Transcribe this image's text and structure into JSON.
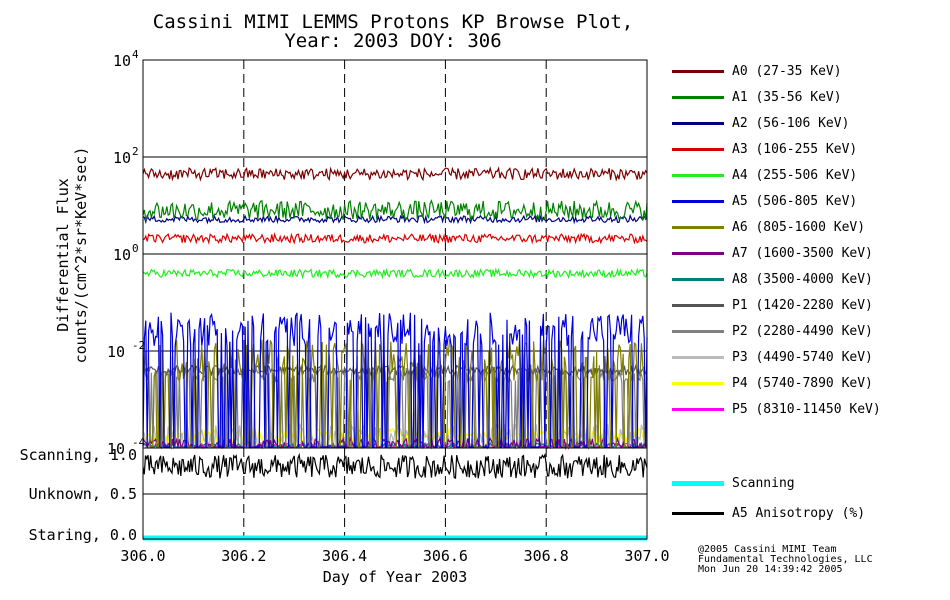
{
  "chart_data": {
    "type": "line",
    "title_line1": "Cassini MIMI LEMMS Protons KP Browse Plot,",
    "title_line2": "Year: 2003 DOY: 306",
    "xlabel": "Day of Year 2003",
    "ylabel_line1": "Differential Flux",
    "ylabel_line2": "counts/(cm^2*sr*KeV*sec)",
    "xlim": [
      306.0,
      307.0
    ],
    "ylim_log10": [
      -4,
      4
    ],
    "x_ticks": [
      "306.0",
      "306.2",
      "306.4",
      "306.6",
      "306.8",
      "307.0"
    ],
    "x_tick_values": [
      306.0,
      306.2,
      306.4,
      306.6,
      306.8,
      307.0
    ],
    "y_ticks": [
      {
        "base": "10",
        "exp": "4",
        "log": 4
      },
      {
        "base": "10",
        "exp": "2",
        "log": 2
      },
      {
        "base": "10",
        "exp": "0",
        "log": 0
      },
      {
        "base": "10",
        "exp": "-2",
        "log": -2
      },
      {
        "base": "10",
        "exp": "-4",
        "log": -4
      }
    ],
    "series": [
      {
        "name": "A0 (27-35 KeV)",
        "color": "#7a0000",
        "typical_log10": 1.65,
        "noise": 0.12,
        "dropouts": false
      },
      {
        "name": "A1 (35-56 KeV)",
        "color": "#008000",
        "typical_log10": 0.9,
        "noise": 0.2,
        "dropouts": false
      },
      {
        "name": "A2 (56-106 KeV)",
        "color": "#000080",
        "typical_log10": 0.72,
        "noise": 0.07,
        "dropouts": false
      },
      {
        "name": "A3 (106-255 KeV)",
        "color": "#dd0000",
        "typical_log10": 0.32,
        "noise": 0.09,
        "dropouts": false
      },
      {
        "name": "A4 (255-506 KeV)",
        "color": "#22ee22",
        "typical_log10": -0.4,
        "noise": 0.08,
        "dropouts": false
      },
      {
        "name": "A5 (506-805 KeV)",
        "color": "#0000dd",
        "typical_log10": -1.55,
        "noise": 0.35,
        "dropouts": true
      },
      {
        "name": "A6 (805-1600 KeV)",
        "color": "#7f7f00",
        "typical_log10": -2.2,
        "noise": 0.45,
        "dropouts": true
      },
      {
        "name": "A7 (1600-3500 KeV)",
        "color": "#7f007f",
        "typical_log10": -3.9,
        "noise": 0.1,
        "dropouts": true
      },
      {
        "name": "A8 (3500-4000 KeV)",
        "color": "#007f7f",
        "typical_log10": -3.95,
        "noise": 0.05,
        "dropouts": true
      },
      {
        "name": "P1 (1420-2280 KeV)",
        "color": "#555555",
        "typical_log10": -2.4,
        "noise": 0.1,
        "dropouts": false
      },
      {
        "name": "P2 (2280-4490 KeV)",
        "color": "#808080",
        "typical_log10": -2.5,
        "noise": 0.15,
        "dropouts": true
      },
      {
        "name": "P3 (4490-5740 KeV)",
        "color": "#bbbbbb",
        "typical_log10": -3.7,
        "noise": 0.2,
        "dropouts": true
      },
      {
        "name": "P4 (5740-7890 KeV)",
        "color": "#ffff00",
        "typical_log10": -3.75,
        "noise": 0.15,
        "dropouts": false
      },
      {
        "name": "P5 (8310-11450 KeV)",
        "color": "#ff00ff",
        "typical_log10": -3.95,
        "noise": 0.05,
        "dropouts": true
      }
    ],
    "lower_panel": {
      "y_labels": [
        "Scanning, 1.0",
        "Unknown, 0.5",
        "Staring, 0.0"
      ],
      "series": [
        {
          "name": "Scanning",
          "color": "#00ffff",
          "value": 0.0
        },
        {
          "name": "A5 Anisotropy (%)",
          "color": "#000000",
          "typical": 0.85,
          "noise": 0.07
        }
      ]
    }
  },
  "credits": {
    "line1": "@2005 Cassini MIMI Team",
    "line2": "Fundamental Technologies, LLC",
    "line3": "Mon Jun 20 14:39:42 2005"
  }
}
